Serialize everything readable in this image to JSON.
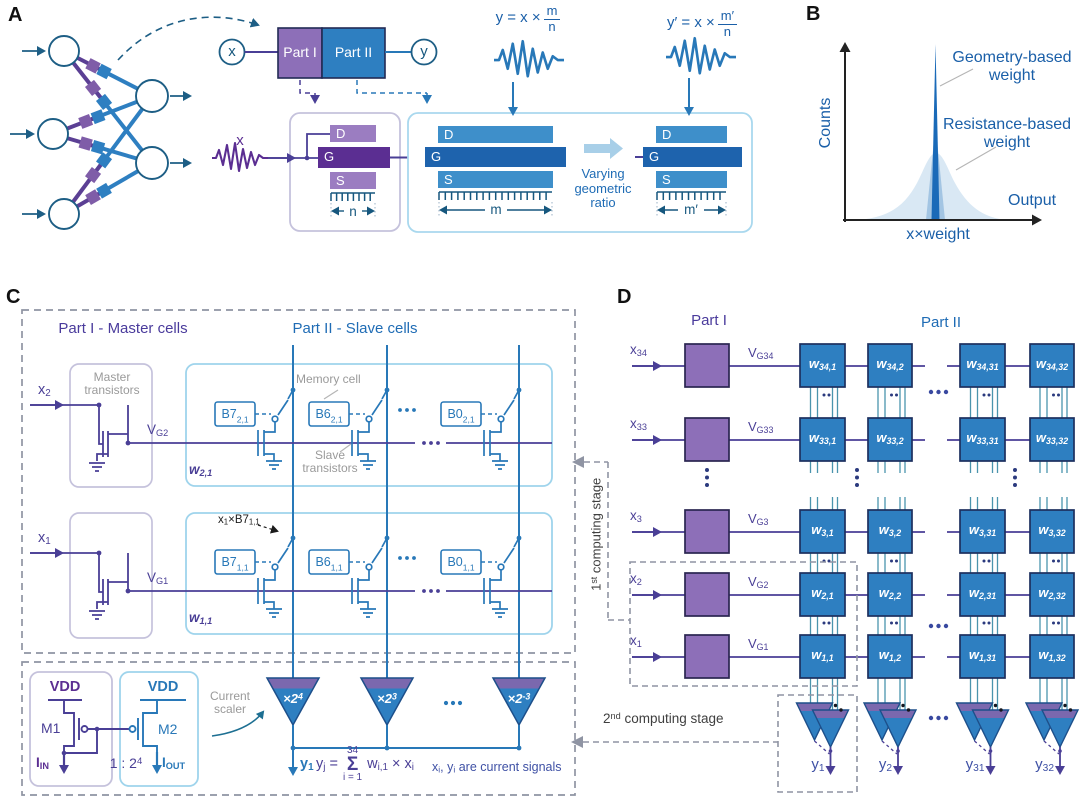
{
  "palette": {
    "purple_line": "#4a3f96",
    "purple_fill": "#8d6fb8",
    "purple_dark": "#5b2e92",
    "blue_line": "#2878b8",
    "blue_fill": "#2e7fc1",
    "blue_dark": "#1e63ad",
    "light_blue_box": "#9fd4ec",
    "lavender_box": "#c5c2dc",
    "teal": "#16577e",
    "gray_dash": "#8f94a3",
    "gray_text": "#9a9a9a",
    "indigo_text": "#3f51a5",
    "triangle_band": "#7b68ae",
    "gauss_fill": "#d9e8f4",
    "spike": "#1a6ab8"
  },
  "panelA": {
    "label": "A",
    "node_x": "x",
    "node_y": "y",
    "part1": "Part I",
    "part2": "Part II",
    "eq1": {
      "pre": "y = x ×",
      "num": "m",
      "den": "n"
    },
    "eq2": {
      "pre": "y′ = x ×",
      "num": "m′",
      "den": "n"
    },
    "signal_x": "x",
    "gate1": {
      "d": "D",
      "g": "G",
      "s": "S",
      "dim": "n"
    },
    "gate2": {
      "d": "D",
      "g": "G",
      "s": "S",
      "dim": "m"
    },
    "gate3": {
      "d": "D",
      "g": "G",
      "s": "S",
      "dim": "m′"
    },
    "varying": "Varying geometric ratio"
  },
  "panelB": {
    "label": "B",
    "ylabel": "Counts",
    "xlabel": "x×weight",
    "output_label": "Output",
    "legend_geometry": "Geometry-based weight",
    "legend_resistance": "Resistance-based weight"
  },
  "panelC": {
    "label": "C",
    "part1_title": "Part I - Master cells",
    "part2_title": "Part II - Slave cells",
    "master_transistors": "Master transistors",
    "memory_cell": "Memory cell",
    "slave_transistors": "Slave transistors",
    "rows": [
      {
        "x": "x_{2}",
        "vg": "V_{G2}",
        "w": "w_{2,1}",
        "cells": [
          "B7_{2,1}",
          "B6_{2,1}",
          "B0_{2,1}"
        ]
      },
      {
        "x": "x_{1}",
        "vg": "V_{G1}",
        "w": "w_{1,1}",
        "cells": [
          "B7_{1,1}",
          "B6_{1,1}",
          "B0_{1,1}"
        ],
        "annotation": "x_{1}×B7_{1,1}"
      }
    ],
    "scalers": [
      "×2^{4}",
      "×2^{3}",
      "×2^{-3}"
    ],
    "current_scaler": "Current scaler",
    "mirror": {
      "vdd_left": "VDD",
      "vdd_right": "VDD",
      "m1": "M1",
      "m2": "M2",
      "i_in": "I_{IN}",
      "ratio": "1 : 2^{4}",
      "i_out": "I_{OUT}"
    },
    "y_out": "y_{1}",
    "equation": {
      "lhs": "y_{j} =",
      "sum_top": "34",
      "sigma": "Σ",
      "sum_bottom": "i = 1",
      "rhs": "w_{i,1} × x_{i}"
    },
    "note": "x_{i}, y_{i} are current signals"
  },
  "panelD": {
    "label": "D",
    "part1": "Part I",
    "part2": "Part II",
    "stage1": "1^{st} computing stage",
    "stage2": "2^{nd} computing stage",
    "rows": [
      {
        "x": "x_{34}",
        "vg": "V_{G34}",
        "cells": [
          "w_{34,1}",
          "w_{34,2}",
          "w_{34,31}",
          "w_{34,32}"
        ]
      },
      {
        "x": "x_{33}",
        "vg": "V_{G33}",
        "cells": [
          "w_{33,1}",
          "w_{33,2}",
          "w_{33,31}",
          "w_{33,32}"
        ]
      },
      {
        "x": "x_{3}",
        "vg": "V_{G3}",
        "cells": [
          "w_{3,1}",
          "w_{3,2}",
          "w_{3,31}",
          "w_{3,32}"
        ]
      },
      {
        "x": "x_{2}",
        "vg": "V_{G2}",
        "cells": [
          "w_{2,1}",
          "w_{2,2}",
          "w_{2,31}",
          "w_{2,32}"
        ]
      },
      {
        "x": "x_{1}",
        "vg": "V_{G1}",
        "cells": [
          "w_{1,1}",
          "w_{1,2}",
          "w_{1,31}",
          "w_{1,32}"
        ]
      }
    ],
    "outputs": [
      "y_{1}",
      "y_{2}",
      "y_{31}",
      "y_{32}"
    ]
  }
}
